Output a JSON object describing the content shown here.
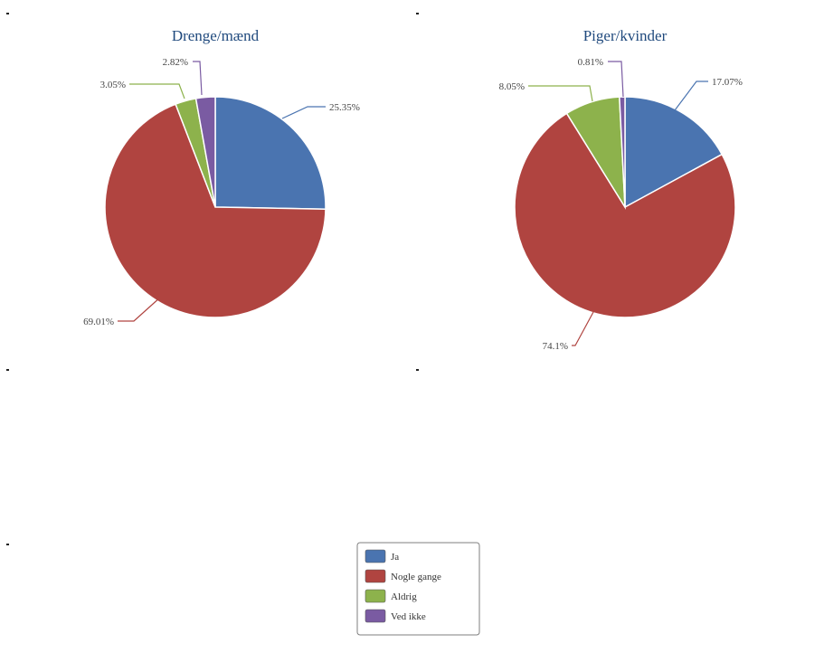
{
  "chart_data": [
    {
      "type": "pie",
      "title": "Drenge/mænd",
      "categories": [
        "Ja",
        "Nogle gange",
        "Aldrig",
        "Ved ikke"
      ],
      "values": [
        25.35,
        69.01,
        3.05,
        2.82
      ],
      "labels": [
        "25.35%",
        "69.01%",
        "3.05%",
        "2.82%"
      ],
      "colors": [
        "#4a74b0",
        "#b04440",
        "#8db24c",
        "#7a5ba2"
      ]
    },
    {
      "type": "pie",
      "title": "Piger/kvinder",
      "categories": [
        "Ja",
        "Nogle gange",
        "Aldrig",
        "Ved ikke"
      ],
      "values": [
        17.07,
        74.1,
        8.05,
        0.81
      ],
      "labels": [
        "17.07%",
        "74.1%",
        "8.05%",
        "0.81%"
      ],
      "colors": [
        "#4a74b0",
        "#b04440",
        "#8db24c",
        "#7a5ba2"
      ]
    }
  ],
  "legend": {
    "items": [
      {
        "label": "Ja",
        "color": "#4a74b0"
      },
      {
        "label": "Nogle gange",
        "color": "#b04440"
      },
      {
        "label": "Aldrig",
        "color": "#8db24c"
      },
      {
        "label": "Ved ikke",
        "color": "#7a5ba2"
      }
    ]
  }
}
